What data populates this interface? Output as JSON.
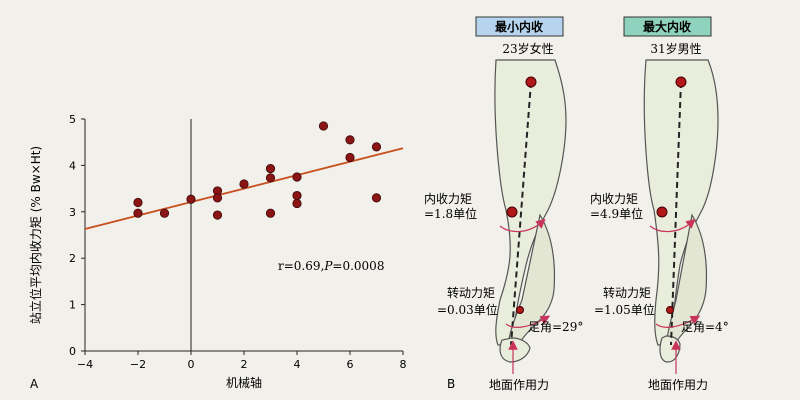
{
  "chart_data": {
    "type": "scatter",
    "panel_label": "A",
    "xlabel": "机械轴",
    "ylabel": "站立位平均内收力矩 (% Bw×Ht)",
    "xlim": [
      -4,
      8
    ],
    "ylim": [
      0,
      5
    ],
    "xticks": [
      "−4",
      "−2",
      "0",
      "2",
      "4",
      "6",
      "8"
    ],
    "yticks": [
      "0",
      "1",
      "2",
      "3",
      "4",
      "5"
    ],
    "annotation": "r=0.69, P=0.0008",
    "annotation_r": "r=0.69,",
    "annotation_p": "P",
    "annotation_pval": "=0.0008",
    "points": [
      {
        "x": -2,
        "y": 3.2
      },
      {
        "x": -2,
        "y": 2.97
      },
      {
        "x": -1,
        "y": 2.97
      },
      {
        "x": 0,
        "y": 3.27
      },
      {
        "x": 1,
        "y": 3.45
      },
      {
        "x": 1,
        "y": 3.3
      },
      {
        "x": 1,
        "y": 2.93
      },
      {
        "x": 2,
        "y": 3.6
      },
      {
        "x": 3,
        "y": 3.93
      },
      {
        "x": 3,
        "y": 3.73
      },
      {
        "x": 3,
        "y": 2.97
      },
      {
        "x": 4,
        "y": 3.75
      },
      {
        "x": 4,
        "y": 3.35
      },
      {
        "x": 4,
        "y": 3.18
      },
      {
        "x": 5,
        "y": 4.85
      },
      {
        "x": 6,
        "y": 4.55
      },
      {
        "x": 6,
        "y": 4.17
      },
      {
        "x": 7,
        "y": 4.4
      },
      {
        "x": 7,
        "y": 3.3
      }
    ],
    "regression": {
      "x": [
        -4,
        8
      ],
      "y": [
        2.63,
        4.37
      ]
    },
    "colors": {
      "point": "#8b1414",
      "line": "#c8501e",
      "axis": "#222222"
    }
  },
  "diagram": {
    "panel_label": "B",
    "panels": [
      {
        "tag": "最小内收",
        "tag_color": "#b6d4ee",
        "subject": "23岁女性",
        "moment_label": "内收力矩",
        "moment_value": "=1.8单位",
        "rotation_label": "转动力矩",
        "rotation_value": "=0.03单位",
        "foot_angle": "足角=29°",
        "ground": "地面作用力"
      },
      {
        "tag": "最大内收",
        "tag_color": "#8fd2bd",
        "subject": "31岁男性",
        "moment_label": "内收力矩",
        "moment_value": "=4.9单位",
        "rotation_label": "转动力矩",
        "rotation_value": "=1.05单位",
        "foot_angle": "足角=4°",
        "ground": "地面作用力"
      }
    ],
    "colors": {
      "dot": "#b0181a",
      "arrow": "#c8345a",
      "leg_fill": "#e9eddc",
      "leg_stroke": "#555555"
    }
  }
}
